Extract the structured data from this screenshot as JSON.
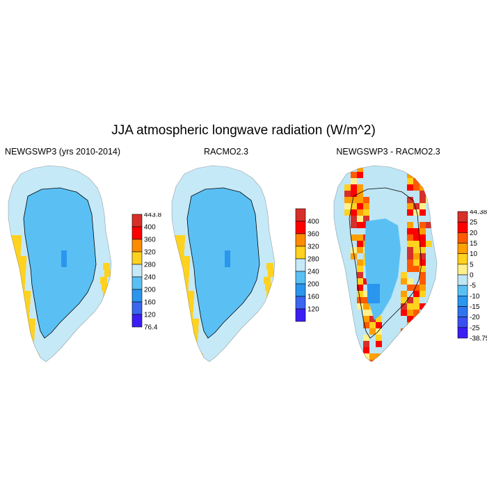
{
  "title": "JJA atmospheric longwave radiation (W/m^2)",
  "panels": [
    {
      "title": "NEWGSWP3 (yrs 2010-2014)",
      "colorbar": {
        "labels": [
          "443.8",
          "400",
          "360",
          "320",
          "280",
          "240",
          "200",
          "160",
          "120",
          "76.4"
        ],
        "colors": [
          "#d7302a",
          "#ff0000",
          "#ff8c00",
          "#ffd21f",
          "#c6e9f7",
          "#5ac0f4",
          "#2a96ee",
          "#3a66f0",
          "#3a1ef4"
        ]
      }
    },
    {
      "title": "RACMO2.3",
      "colorbar": {
        "labels": [
          "400",
          "360",
          "320",
          "280",
          "240",
          "200",
          "160",
          "120"
        ],
        "colors": [
          "#d7302a",
          "#ff0000",
          "#ff8c00",
          "#ffd21f",
          "#c6e9f7",
          "#5ac0f4",
          "#2a96ee",
          "#3a66f0",
          "#3a1ef4"
        ]
      }
    },
    {
      "title": "NEWGSWP3 - RACMO2.3",
      "colorbar": {
        "labels": [
          "44.38",
          "25",
          "20",
          "15",
          "10",
          "5",
          "0",
          "-5",
          "-10",
          "-15",
          "-20",
          "-25",
          "-38.75"
        ],
        "colors": [
          "#d7302a",
          "#ff0000",
          "#ff5a00",
          "#ffa000",
          "#ffd21f",
          "#fff08c",
          "#bfe6f5",
          "#5ac0f4",
          "#2a96ee",
          "#2f74ee",
          "#3a50f0",
          "#3a1ef4"
        ]
      }
    }
  ]
}
